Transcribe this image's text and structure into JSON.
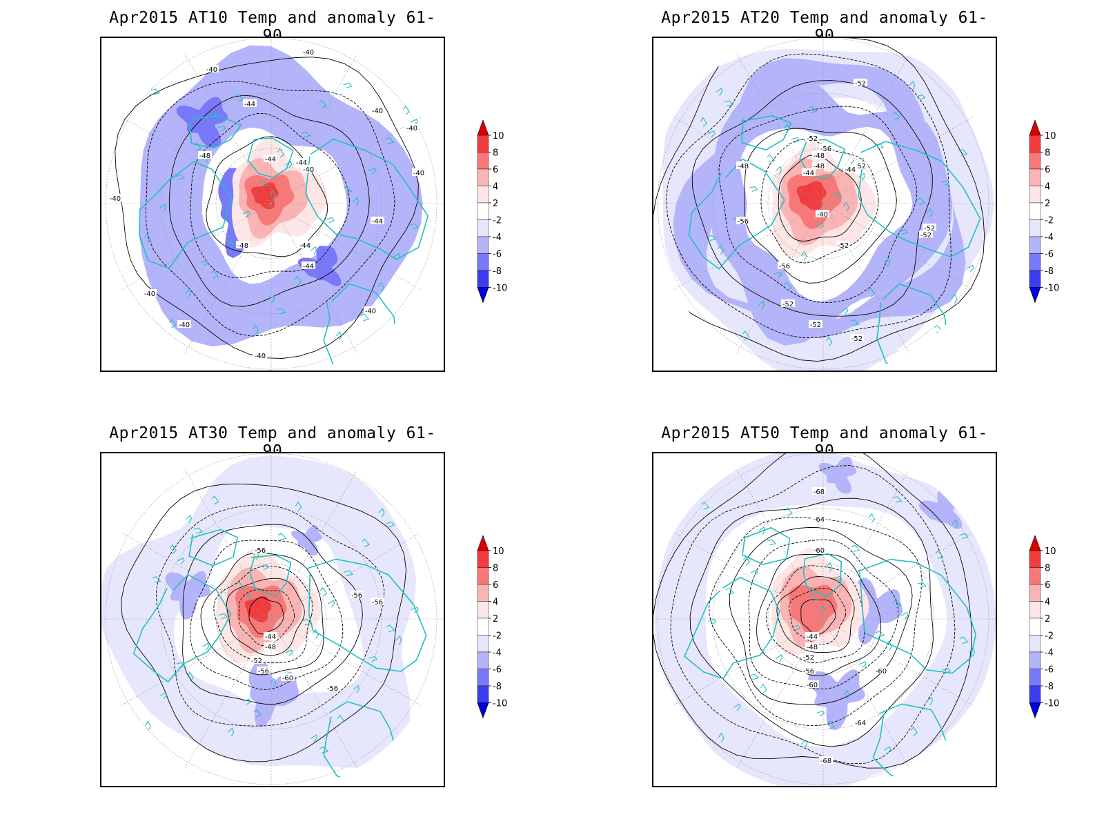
{
  "panels": [
    {
      "title": "Apr2015 AT10 Temp and anomaly 61-90",
      "contour_labels": [
        "-40",
        "-40",
        "-44",
        "-40",
        "-40",
        "-48",
        "-44",
        "-44",
        "-40",
        "-40",
        "-44",
        "-48",
        "-44",
        "-44",
        "-40",
        "-40",
        "-40",
        "-40",
        "-40"
      ]
    },
    {
      "title": "Apr2015 AT20 Temp and anomaly 61-90",
      "contour_labels": [
        "-52",
        "-48",
        "-48",
        "-52",
        "-52",
        "-56",
        "-48",
        "-44",
        "-44",
        "-52",
        "-56",
        "-40",
        "-52",
        "-52",
        "-56",
        "-52",
        "-52",
        "-52"
      ]
    },
    {
      "title": "Apr2015 AT30 Temp and anomaly 61-90",
      "contour_labels": [
        "-56",
        "-56",
        "-56",
        "-44",
        "-48",
        "-52",
        "-56",
        "-60",
        "-56"
      ]
    },
    {
      "title": "Apr2015 AT50 Temp and anomaly 61-90",
      "contour_labels": [
        "-68",
        "-64",
        "-60",
        "-44",
        "-48",
        "-52",
        "-56",
        "-60",
        "-60",
        "-64",
        "-68"
      ]
    }
  ],
  "colorbar": {
    "ticks": [
      "10",
      "8",
      "6",
      "4",
      "2",
      "-2",
      "-4",
      "-6",
      "-8",
      "-10"
    ],
    "colors": [
      "#dc0000",
      "#f03c3c",
      "#f87878",
      "#fab4b4",
      "#fde6e6",
      "#ffffff",
      "#e6e6fd",
      "#b4b4fa",
      "#7878f8",
      "#3c3cf0",
      "#0000dc"
    ]
  },
  "land_color": "#20c0c0",
  "contour_color": "#000000"
}
